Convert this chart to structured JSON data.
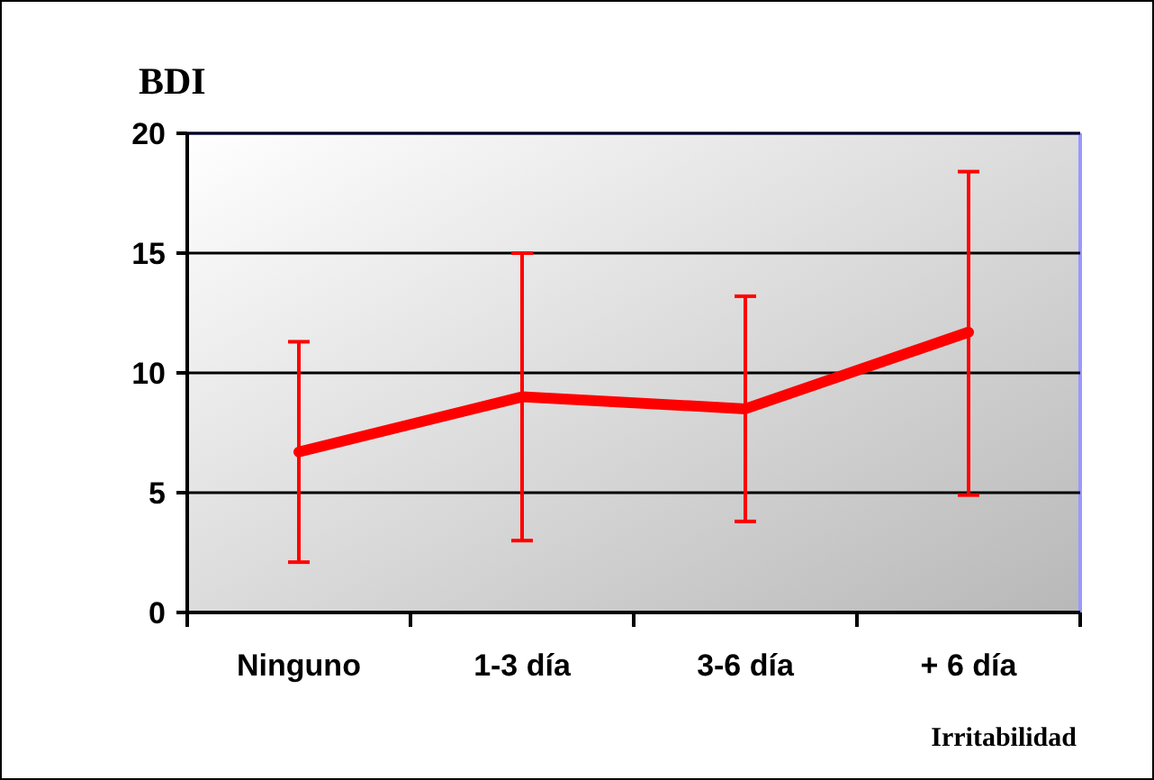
{
  "chart_data": {
    "type": "line",
    "ylabel": "BDI",
    "xlabel": "Irritabilidad",
    "categories": [
      "Ninguno",
      "1-3 día",
      "3-6 día",
      "+ 6 día"
    ],
    "series": [
      {
        "color": "#ff0000",
        "values": [
          6.7,
          9.0,
          8.5,
          11.7
        ],
        "errors": [
          [
            2.1,
            11.3
          ],
          [
            3.0,
            15.0
          ],
          [
            3.8,
            13.2
          ],
          [
            4.9,
            18.4
          ]
        ]
      }
    ],
    "ylim": [
      0,
      20
    ],
    "yticks": [
      0,
      5,
      10,
      15,
      20
    ],
    "grid": "y",
    "marker": "none",
    "line_style": "solid"
  }
}
